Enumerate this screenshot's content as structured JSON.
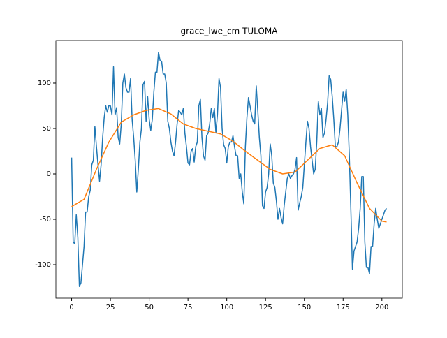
{
  "chart_data": {
    "type": "line",
    "title": "grace_lwe_cm TULOMA",
    "xlim": [
      -10.15,
      213.15
    ],
    "ylim": [
      -136.9,
      146.9
    ],
    "xticks": [
      0,
      25,
      50,
      75,
      100,
      125,
      150,
      175,
      200
    ],
    "yticks": [
      -100,
      -50,
      0,
      50,
      100
    ],
    "series": [
      {
        "color": "#1f77b4",
        "x": [
          0,
          1,
          2,
          3,
          4,
          5,
          6,
          7,
          8,
          9,
          10,
          11,
          12,
          13,
          14,
          15,
          16,
          17,
          18,
          19,
          20,
          21,
          22,
          23,
          24,
          25,
          26,
          27,
          28,
          29,
          30,
          31,
          32,
          33,
          34,
          35,
          36,
          37,
          38,
          39,
          40,
          41,
          42,
          43,
          44,
          45,
          46,
          47,
          48,
          49,
          50,
          51,
          52,
          53,
          54,
          55,
          56,
          57,
          58,
          59,
          60,
          61,
          62,
          63,
          64,
          65,
          66,
          67,
          68,
          69,
          70,
          71,
          72,
          73,
          74,
          75,
          76,
          77,
          78,
          79,
          80,
          81,
          82,
          83,
          84,
          85,
          86,
          87,
          88,
          89,
          90,
          91,
          92,
          93,
          94,
          95,
          96,
          97,
          98,
          99,
          100,
          101,
          102,
          103,
          104,
          105,
          106,
          107,
          108,
          109,
          110,
          111,
          112,
          113,
          114,
          115,
          116,
          117,
          118,
          119,
          120,
          121,
          122,
          123,
          124,
          125,
          126,
          127,
          128,
          129,
          130,
          131,
          132,
          133,
          134,
          135,
          136,
          137,
          138,
          139,
          140,
          141,
          142,
          143,
          144,
          145,
          146,
          147,
          148,
          149,
          150,
          151,
          152,
          153,
          154,
          155,
          156,
          157,
          158,
          159,
          160,
          161,
          162,
          163,
          164,
          165,
          166,
          167,
          168,
          169,
          170,
          171,
          172,
          173,
          174,
          175,
          176,
          177,
          178,
          179,
          180,
          181,
          182,
          183,
          184,
          185,
          186,
          187,
          188,
          189,
          190,
          191,
          192,
          193,
          194,
          195,
          196,
          197,
          198,
          199,
          200,
          201,
          202,
          203
        ],
        "values": [
          18,
          -75,
          -77,
          -45,
          -70,
          -124,
          -120,
          -100,
          -80,
          -42,
          -42,
          -25,
          -18,
          10,
          15,
          52,
          30,
          10,
          -8,
          10,
          40,
          62,
          75,
          68,
          75,
          75,
          65,
          118,
          65,
          73,
          40,
          33,
          55,
          100,
          110,
          95,
          90,
          90,
          105,
          60,
          40,
          15,
          -20,
          5,
          35,
          50,
          98,
          102,
          58,
          85,
          60,
          48,
          60,
          90,
          112,
          112,
          134,
          125,
          124,
          110,
          110,
          100,
          58,
          50,
          35,
          25,
          20,
          35,
          55,
          70,
          68,
          65,
          72,
          45,
          30,
          12,
          10,
          25,
          28,
          13,
          30,
          35,
          75,
          82,
          40,
          20,
          15,
          42,
          45,
          55,
          72,
          62,
          72,
          45,
          65,
          105,
          95,
          50,
          32,
          28,
          12,
          30,
          35,
          35,
          42,
          30,
          20,
          20,
          -5,
          0,
          -20,
          -33,
          30,
          62,
          84,
          75,
          65,
          58,
          55,
          97,
          70,
          40,
          20,
          -35,
          -38,
          -20,
          -15,
          0,
          33,
          20,
          -10,
          -15,
          -30,
          -50,
          -38,
          -48,
          -55,
          -35,
          -20,
          -5,
          0,
          -5,
          -2,
          0,
          5,
          18,
          -40,
          -32,
          -25,
          -15,
          10,
          35,
          58,
          50,
          30,
          15,
          0,
          5,
          35,
          80,
          65,
          72,
          40,
          45,
          60,
          78,
          108,
          104,
          85,
          60,
          30,
          30,
          35,
          50,
          70,
          90,
          80,
          93,
          65,
          20,
          -40,
          -105,
          -85,
          -80,
          -75,
          -60,
          -38,
          -3,
          -3,
          -75,
          -103,
          -103,
          -110,
          -80,
          -80,
          -55,
          -38,
          -50,
          -60,
          -55,
          -50,
          -45,
          -40,
          -38
        ]
      },
      {
        "color": "#ff7f0e",
        "x": [
          0,
          8,
          16,
          24,
          32,
          40,
          48,
          56,
          64,
          72,
          80,
          88,
          96,
          104,
          112,
          120,
          128,
          136,
          144,
          152,
          160,
          168,
          176,
          184,
          192,
          200,
          203
        ],
        "values": [
          -36,
          -28,
          5,
          35,
          57,
          65,
          70,
          72,
          66,
          55,
          50,
          47,
          44,
          36,
          25,
          15,
          5,
          0,
          2,
          15,
          28,
          32,
          20,
          -10,
          -38,
          -52,
          -53
        ]
      }
    ]
  }
}
